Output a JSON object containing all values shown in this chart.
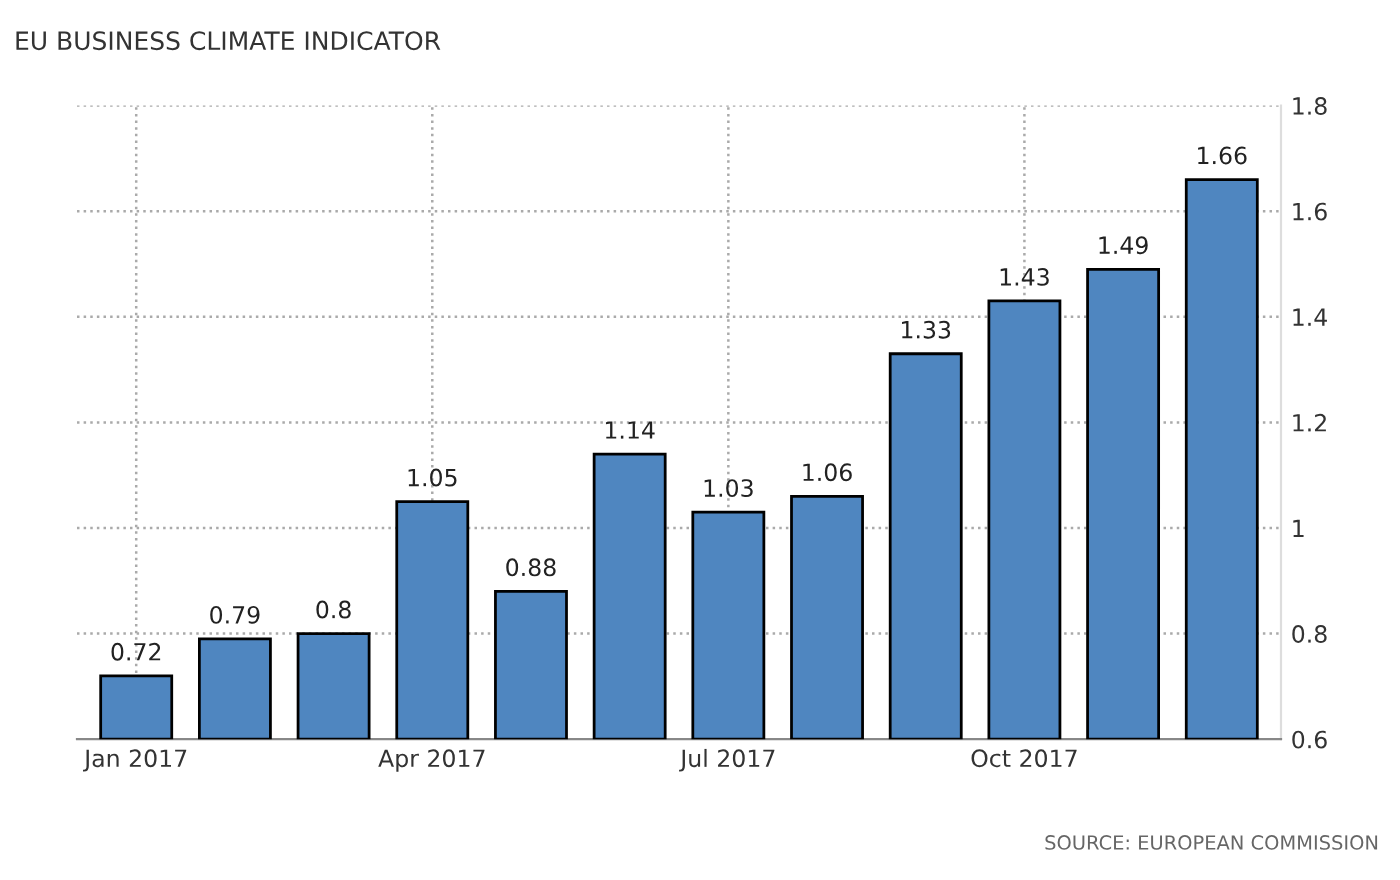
{
  "chart_data": {
    "type": "bar",
    "title": "EU BUSINESS CLIMATE INDICATOR",
    "categories": [
      "Jan 2017",
      null,
      null,
      "Apr 2017",
      null,
      null,
      "Jul 2017",
      null,
      null,
      "Oct 2017",
      null,
      null
    ],
    "values": [
      0.72,
      0.79,
      0.8,
      1.05,
      0.88,
      1.14,
      1.03,
      1.06,
      1.33,
      1.43,
      1.49,
      1.66
    ],
    "color": "#4f86c0",
    "ylim": [
      0.6,
      1.8
    ],
    "yticks": [
      0.6,
      0.8,
      1,
      1.2,
      1.4,
      1.6,
      1.8
    ],
    "grid": true,
    "data_labels": true,
    "annotations": [
      "SOURCE: EUROPEAN COMMISSION"
    ]
  }
}
